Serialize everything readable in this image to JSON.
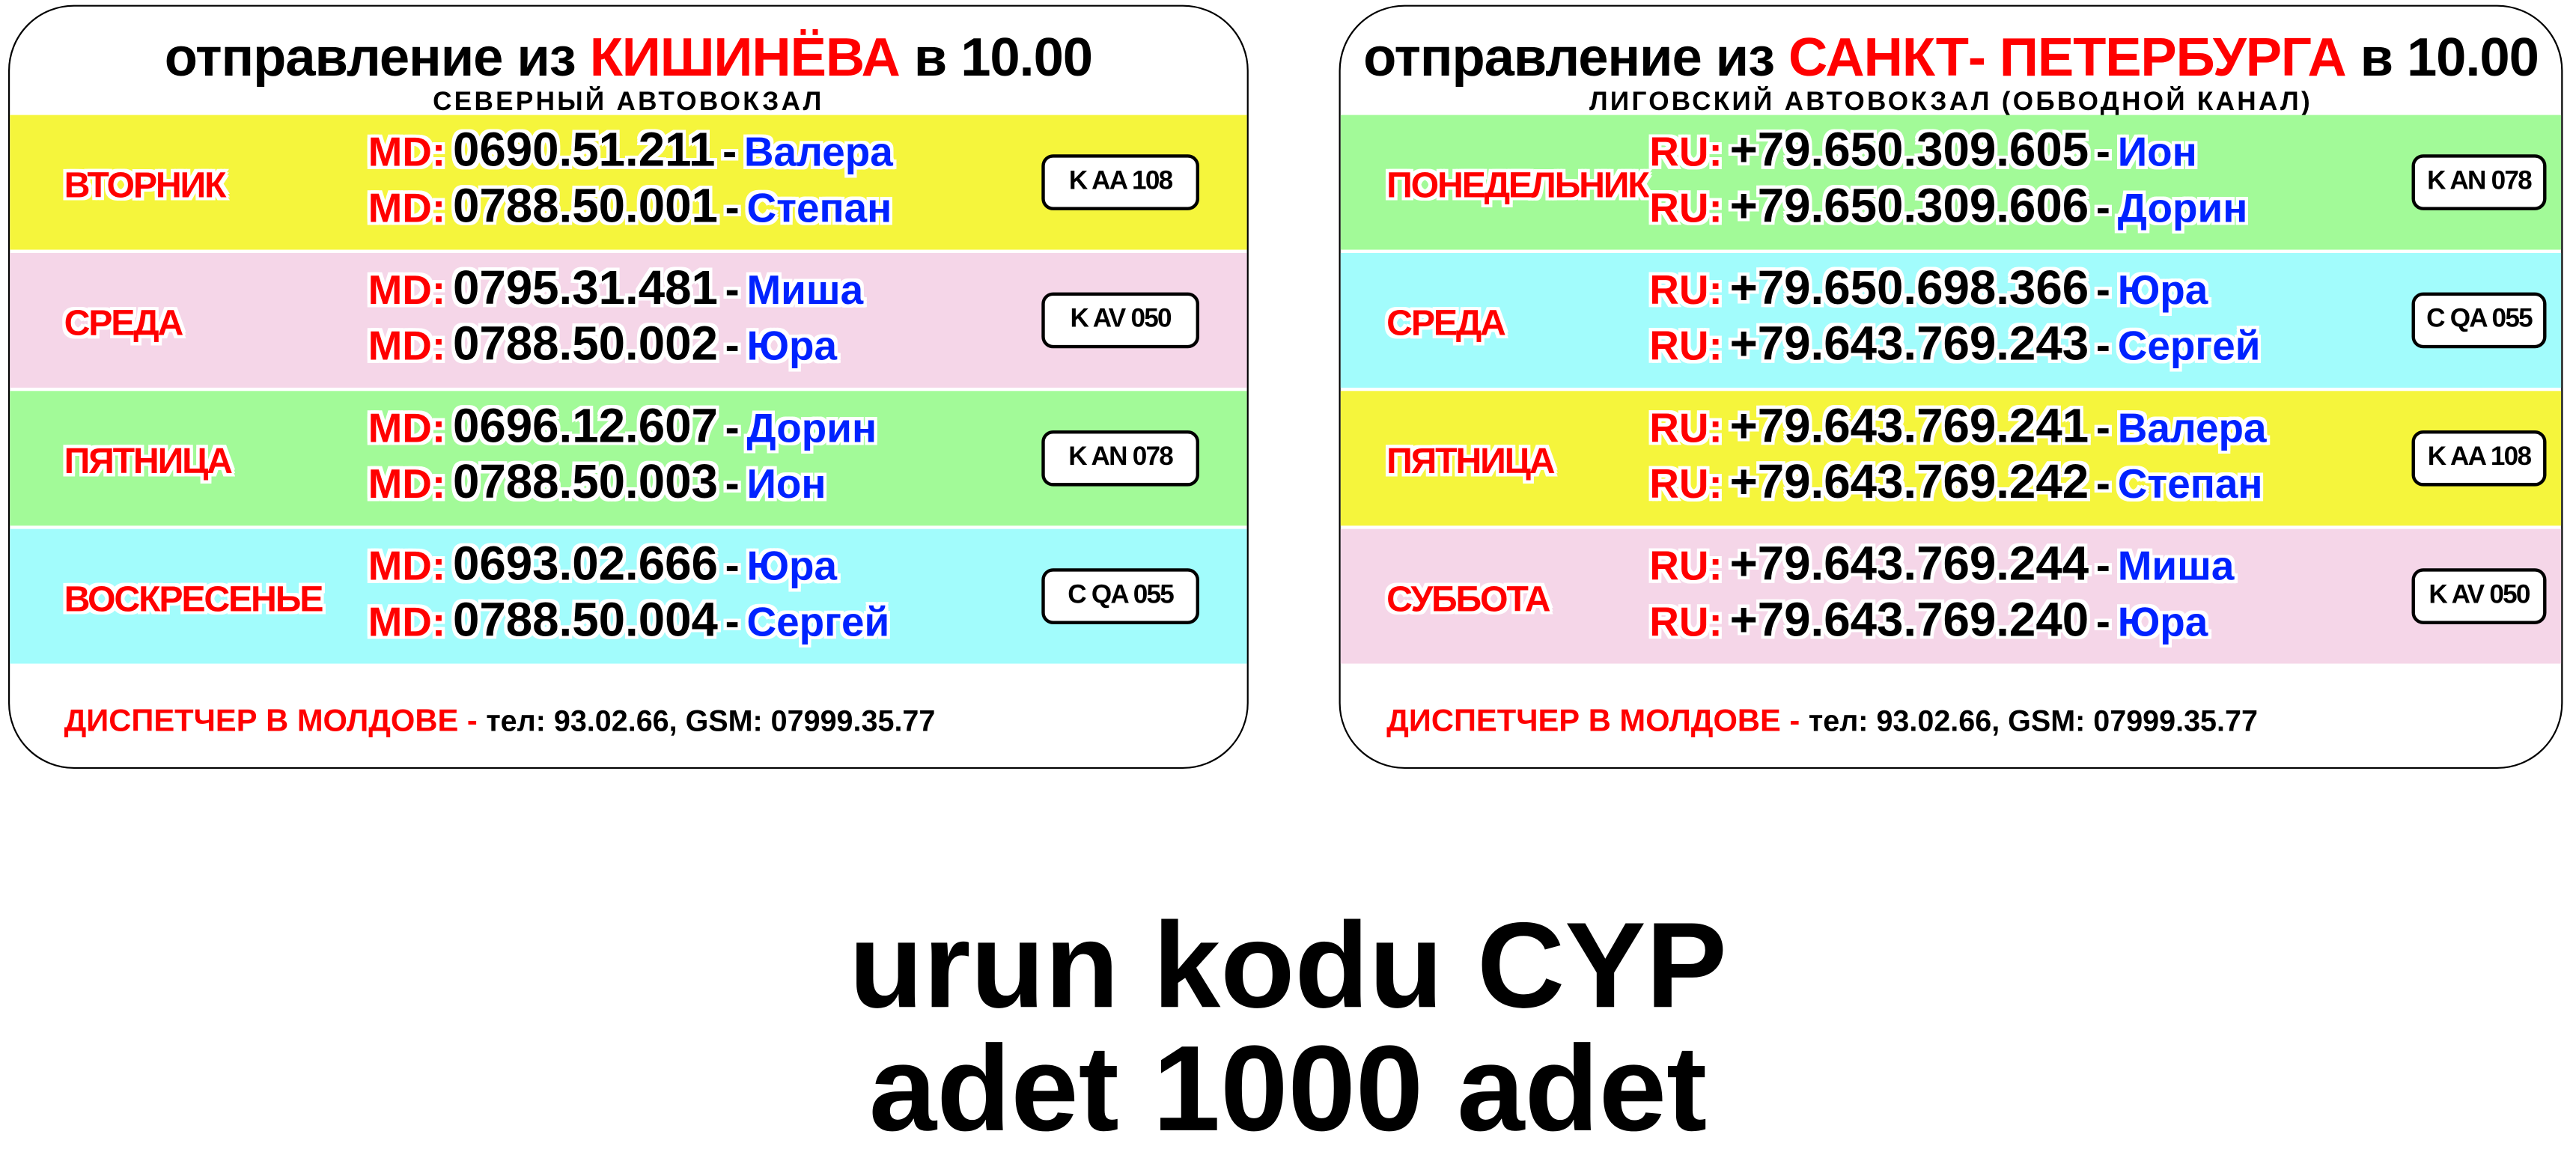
{
  "colors": {
    "yellow": "#f5f53c",
    "pink": "#f5d6e8",
    "green": "#a2fa98",
    "cyan": "#a2fcfc",
    "red": "#ff0000",
    "blue": "#0022ff"
  },
  "cards": [
    {
      "title_pre": "отправление из ",
      "city": "КИШИНЁВА",
      "title_post": " в 10.00",
      "subtitle": "СЕВЕРНЫЙ АВТОВОКЗАЛ",
      "rows": [
        {
          "day": "ВТОРНИК",
          "color": "#f5f53c",
          "plate": "K AA 108",
          "lines": [
            {
              "prefix": "MD:",
              "number": "0690.51.211",
              "dash": "-",
              "name": "Валера"
            },
            {
              "prefix": "MD:",
              "number": "0788.50.001",
              "dash": "-",
              "name": "Степан"
            }
          ]
        },
        {
          "day": "СРЕДА",
          "color": "#f5d6e8",
          "plate": "K AV 050",
          "lines": [
            {
              "prefix": "MD:",
              "number": "0795.31.481",
              "dash": "-",
              "name": "Миша"
            },
            {
              "prefix": "MD:",
              "number": "0788.50.002",
              "dash": "-",
              "name": "Юра"
            }
          ]
        },
        {
          "day": "ПЯТНИЦА",
          "color": "#a2fa98",
          "plate": "K AN 078",
          "lines": [
            {
              "prefix": "MD:",
              "number": "0696.12.607",
              "dash": "-",
              "name": "Дорин"
            },
            {
              "prefix": "MD:",
              "number": "0788.50.003",
              "dash": "-",
              "name": "Ион"
            }
          ]
        },
        {
          "day": "ВОСКРЕСЕНЬЕ",
          "color": "#a2fcfc",
          "plate": "C QA 055",
          "lines": [
            {
              "prefix": "MD:",
              "number": "0693.02.666",
              "dash": "-",
              "name": "Юра"
            },
            {
              "prefix": "MD:",
              "number": "0788.50.004",
              "dash": "-",
              "name": "Сергей"
            }
          ]
        }
      ],
      "footer_label": "ДИСПЕТЧЕР В МОЛДОВЕ - ",
      "footer_contacts": "тел: 93.02.66, GSM: 07999.35.77"
    },
    {
      "title_pre": "отправление из ",
      "city": "САНКТ- ПЕТЕРБУРГА",
      "title_post": " в 10.00",
      "subtitle": "ЛИГОВСКИЙ АВТОВОКЗАЛ (ОБВОДНОЙ КАНАЛ)",
      "rows": [
        {
          "day": "ПОНЕДЕЛЬНИК",
          "color": "#a2fa98",
          "plate": "K AN 078",
          "lines": [
            {
              "prefix": "RU:",
              "number": "+79.650.309.605",
              "dash": "-",
              "name": "Ион"
            },
            {
              "prefix": "RU:",
              "number": "+79.650.309.606",
              "dash": "-",
              "name": "Дорин"
            }
          ]
        },
        {
          "day": "СРЕДА",
          "color": "#a2fcfc",
          "plate": "C QA 055",
          "lines": [
            {
              "prefix": "RU:",
              "number": "+79.650.698.366",
              "dash": "-",
              "name": "Юра"
            },
            {
              "prefix": "RU:",
              "number": "+79.643.769.243",
              "dash": "-",
              "name": "Сергей"
            }
          ]
        },
        {
          "day": "ПЯТНИЦА",
          "color": "#f5f53c",
          "plate": "K AA 108",
          "lines": [
            {
              "prefix": "RU:",
              "number": "+79.643.769.241",
              "dash": "-",
              "name": "Валера"
            },
            {
              "prefix": "RU:",
              "number": "+79.643.769.242",
              "dash": "-",
              "name": "Степан"
            }
          ]
        },
        {
          "day": "СУББОТА",
          "color": "#f5d6e8",
          "plate": "K AV 050",
          "lines": [
            {
              "prefix": "RU:",
              "number": "+79.643.769.244",
              "dash": "-",
              "name": "Миша"
            },
            {
              "prefix": "RU:",
              "number": "+79.643.769.240",
              "dash": "-",
              "name": "Юра"
            }
          ]
        }
      ],
      "footer_label": "ДИСПЕТЧЕР В МОЛДОВЕ - ",
      "footer_contacts": "тел: 93.02.66, GSM: 07999.35.77"
    }
  ],
  "caption": {
    "line1": "urun kodu CYP",
    "line2": "adet 1000 adet"
  }
}
